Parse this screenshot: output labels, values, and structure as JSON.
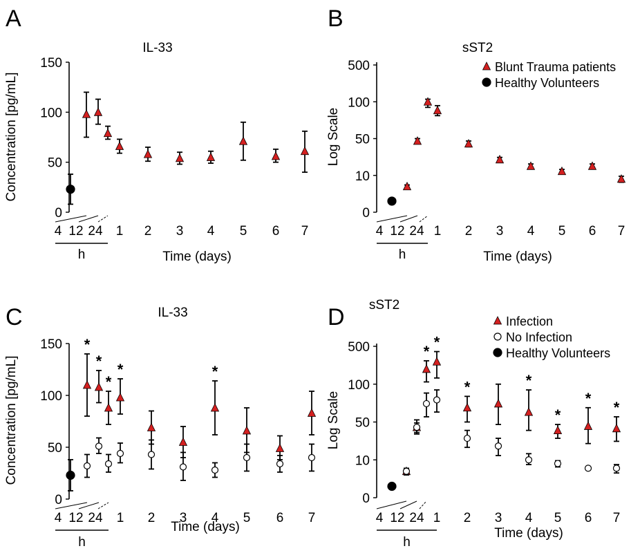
{
  "chart_data": [
    {
      "panel_letter": "A",
      "type": "scatter",
      "title": "IL-33",
      "ylabel": "Concentration [pg/mL]",
      "xlabel": "Time (days)",
      "x_categories": [
        "4",
        "12",
        "24",
        "1",
        "2",
        "3",
        "4",
        "5",
        "6",
        "7"
      ],
      "x_hours_unit": "h",
      "y_ticks": [
        "0",
        "50",
        "100",
        "150"
      ],
      "ylim": [
        0,
        150
      ],
      "legend": [],
      "series": [
        {
          "kind": "healthy",
          "color": "#000000",
          "points": [
            {
              "x": "Healthy",
              "y": 23,
              "err": [
                8,
                38
              ]
            }
          ]
        },
        {
          "kind": "trauma",
          "color": "#d42020",
          "points": [
            {
              "x": "4h",
              "y": 98,
              "err": [
                75,
                120
              ]
            },
            {
              "x": "12h",
              "y": 100,
              "err": [
                88,
                113
              ]
            },
            {
              "x": "24h",
              "y": 79,
              "err": [
                73,
                86
              ]
            },
            {
              "x": "1",
              "y": 66,
              "err": [
                59,
                73
              ]
            },
            {
              "x": "2",
              "y": 58,
              "err": [
                51,
                65
              ]
            },
            {
              "x": "3",
              "y": 54,
              "err": [
                48,
                60
              ]
            },
            {
              "x": "4",
              "y": 55,
              "err": [
                49,
                61
              ]
            },
            {
              "x": "5",
              "y": 71,
              "err": [
                52,
                90
              ]
            },
            {
              "x": "6",
              "y": 56,
              "err": [
                50,
                63
              ]
            },
            {
              "x": "7",
              "y": 61,
              "err": [
                40,
                81
              ]
            }
          ]
        }
      ],
      "stars": []
    },
    {
      "panel_letter": "B",
      "type": "scatter",
      "title": "sST2",
      "ylabel": "Log Scale",
      "xlabel": "Time (days)",
      "x_categories": [
        "4",
        "12",
        "24",
        "1",
        "2",
        "3",
        "4",
        "5",
        "6",
        "7"
      ],
      "x_hours_unit": "h",
      "y_ticks": [
        "0",
        "10",
        "50",
        "100",
        "500"
      ],
      "yscale": "log",
      "legend": [
        {
          "label": "Blunt Trauma patients",
          "marker": "triangle",
          "color": "#d42020"
        },
        {
          "label": "Healthy Volunteers",
          "marker": "circle",
          "color": "#000000"
        }
      ],
      "series": [
        {
          "kind": "healthy",
          "color": "#000000",
          "points": [
            {
              "x": "Healthy",
              "y": 2,
              "err": [
                2,
                2
              ]
            }
          ]
        },
        {
          "kind": "trauma",
          "color": "#d42020",
          "points": [
            {
              "x": "4h",
              "y": 5,
              "err": [
                4.5,
                5.5
              ]
            },
            {
              "x": "12h",
              "y": 45,
              "err": [
                40,
                50
              ]
            },
            {
              "x": "24h",
              "y": 100,
              "err": [
                90,
                112
              ]
            },
            {
              "x": "1",
              "y": 85,
              "err": [
                77,
                93
              ]
            },
            {
              "x": "2",
              "y": 40,
              "err": [
                35,
                45
              ]
            },
            {
              "x": "3",
              "y": 20,
              "err": [
                18,
                22
              ]
            },
            {
              "x": "4",
              "y": 15,
              "err": [
                13.5,
                16.5
              ]
            },
            {
              "x": "5",
              "y": 12,
              "err": [
                11,
                13
              ]
            },
            {
              "x": "6",
              "y": 15,
              "err": [
                13.5,
                16.5
              ]
            },
            {
              "x": "7",
              "y": 8,
              "err": [
                6.5,
                9.5
              ]
            }
          ]
        }
      ],
      "stars": []
    },
    {
      "panel_letter": "C",
      "type": "scatter",
      "title": "IL-33",
      "ylabel": "Concentration [pg/mL]",
      "xlabel": "Time (days)",
      "x_categories": [
        "4",
        "12",
        "24",
        "1",
        "2",
        "3",
        "4",
        "5",
        "6",
        "7"
      ],
      "x_hours_unit": "h",
      "y_ticks": [
        "0",
        "50",
        "100",
        "150"
      ],
      "ylim": [
        0,
        150
      ],
      "legend": [],
      "series": [
        {
          "kind": "healthy",
          "color": "#000000",
          "points": [
            {
              "x": "Healthy",
              "y": 23,
              "err": [
                8,
                38
              ]
            }
          ]
        },
        {
          "kind": "infection",
          "color": "#d42020",
          "points": [
            {
              "x": "4h",
              "y": 110,
              "err": [
                80,
                140
              ]
            },
            {
              "x": "12h",
              "y": 108,
              "err": [
                93,
                124
              ]
            },
            {
              "x": "24h",
              "y": 88,
              "err": [
                72,
                104
              ]
            },
            {
              "x": "1",
              "y": 98,
              "err": [
                82,
                116
              ]
            },
            {
              "x": "2",
              "y": 69,
              "err": [
                53,
                85
              ]
            },
            {
              "x": "3",
              "y": 55,
              "err": [
                40,
                70
              ]
            },
            {
              "x": "4",
              "y": 88,
              "err": [
                62,
                114
              ]
            },
            {
              "x": "5",
              "y": 66,
              "err": [
                45,
                88
              ]
            },
            {
              "x": "6",
              "y": 49,
              "err": [
                38,
                61
              ]
            },
            {
              "x": "7",
              "y": 83,
              "err": [
                62,
                104
              ]
            }
          ]
        },
        {
          "kind": "noinfection",
          "color": "#000000",
          "points": [
            {
              "x": "4h",
              "y": 32,
              "err": [
                21,
                43
              ]
            },
            {
              "x": "12h",
              "y": 51,
              "err": [
                44,
                59
              ]
            },
            {
              "x": "24h",
              "y": 34,
              "err": [
                26,
                43
              ]
            },
            {
              "x": "1",
              "y": 44,
              "err": [
                35,
                54
              ]
            },
            {
              "x": "2",
              "y": 43,
              "err": [
                29,
                57
              ]
            },
            {
              "x": "3",
              "y": 31,
              "err": [
                18,
                45
              ]
            },
            {
              "x": "4",
              "y": 28,
              "err": [
                21,
                35
              ]
            },
            {
              "x": "5",
              "y": 40,
              "err": [
                27,
                53
              ]
            },
            {
              "x": "6",
              "y": 34,
              "err": [
                26,
                42
              ]
            },
            {
              "x": "7",
              "y": 40,
              "err": [
                27,
                53
              ]
            }
          ]
        }
      ],
      "stars": [
        "4h",
        "12h",
        "24h",
        "1",
        "4"
      ],
      "star_symbol": "*"
    },
    {
      "panel_letter": "D",
      "type": "scatter",
      "title": "sST2",
      "ylabel": "Log Scale",
      "xlabel": "Time (days)",
      "x_categories": [
        "4",
        "12",
        "24",
        "1",
        "2",
        "3",
        "4",
        "5",
        "6",
        "7"
      ],
      "x_hours_unit": "h",
      "y_ticks": [
        "0",
        "10",
        "50",
        "100",
        "500"
      ],
      "yscale": "log",
      "legend": [
        {
          "label": "Infection",
          "marker": "triangle",
          "color": "#d42020"
        },
        {
          "label": "No Infection",
          "marker": "open-circle",
          "color": "#000000"
        },
        {
          "label": "Healthy Volunteers",
          "marker": "circle",
          "color": "#000000"
        }
      ],
      "series": [
        {
          "kind": "healthy",
          "color": "#000000",
          "points": [
            {
              "x": "Healthy",
              "y": 2,
              "err": [
                2,
                2
              ]
            }
          ]
        },
        {
          "kind": "infection",
          "color": "#d42020",
          "points": [
            {
              "x": "4h",
              "y": 5,
              "err": [
                4,
                6
              ]
            },
            {
              "x": "12h",
              "y": 40,
              "err": [
                32,
                48
              ]
            },
            {
              "x": "24h",
              "y": 190,
              "err": [
                110,
                270
              ]
            },
            {
              "x": "1",
              "y": 260,
              "err": [
                130,
                400
              ]
            },
            {
              "x": "2",
              "y": 65,
              "err": [
                50,
                80
              ]
            },
            {
              "x": "3",
              "y": 70,
              "err": [
                45,
                100
              ]
            },
            {
              "x": "4",
              "y": 60,
              "err": [
                35,
                90
              ]
            },
            {
              "x": "5",
              "y": 35,
              "err": [
                25,
                45
              ]
            },
            {
              "x": "6",
              "y": 42,
              "err": [
                20,
                65
              ]
            },
            {
              "x": "7",
              "y": 38,
              "err": [
                22,
                55
              ]
            }
          ]
        },
        {
          "kind": "noinfection",
          "color": "#000000",
          "points": [
            {
              "x": "4h",
              "y": 5,
              "err": [
                4,
                6
              ]
            },
            {
              "x": "12h",
              "y": 40,
              "err": [
                30,
                52
              ]
            },
            {
              "x": "24h",
              "y": 70,
              "err": [
                55,
                85
              ]
            },
            {
              "x": "1",
              "y": 75,
              "err": [
                60,
                90
              ]
            },
            {
              "x": "2",
              "y": 25,
              "err": [
                17,
                35
              ]
            },
            {
              "x": "3",
              "y": 18,
              "err": [
                12,
                25
              ]
            },
            {
              "x": "4",
              "y": 10,
              "err": [
                7.5,
                13
              ]
            },
            {
              "x": "5",
              "y": 8,
              "err": [
                6.5,
                9.5
              ]
            },
            {
              "x": "6",
              "y": 6,
              "err": [
                6,
                6
              ]
            },
            {
              "x": "7",
              "y": 6,
              "err": [
                4.5,
                7.5
              ]
            }
          ]
        }
      ],
      "stars": [
        "24h",
        "1",
        "2",
        "4",
        "5",
        "6",
        "7"
      ],
      "star_symbol": "*"
    }
  ]
}
